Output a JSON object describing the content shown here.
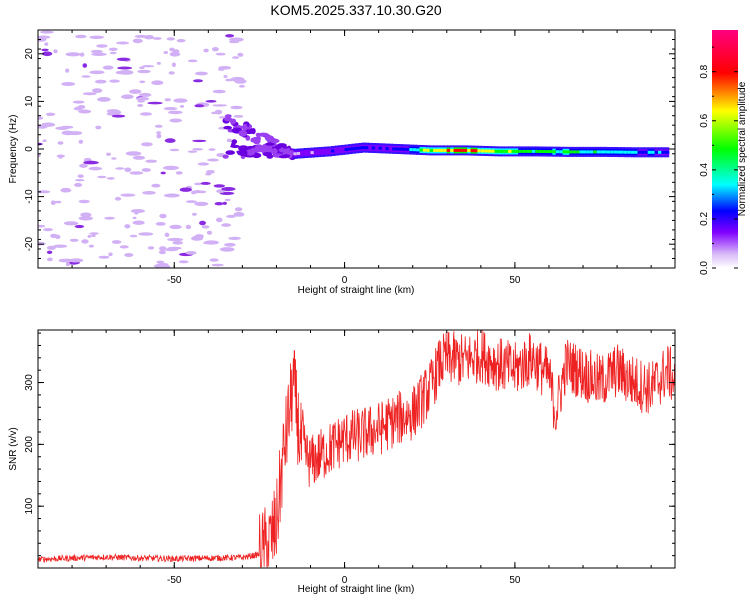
{
  "title": "KOM5.2025.337.10.30.G20",
  "chart_data": [
    {
      "type": "heatmap",
      "title": "KOM5.2025.337.10.30.G20",
      "xlabel": "Height of straight line (km)",
      "ylabel": "Frequency (Hz)",
      "xlim": [
        -90,
        97
      ],
      "ylim": [
        -25,
        25
      ],
      "xticks": [
        -50,
        0,
        50
      ],
      "yticks": [
        -20,
        -10,
        0,
        10,
        20
      ],
      "colorbar": {
        "label": "Normalized spectral amplitude",
        "range": [
          0,
          0.97
        ],
        "ticks": [
          0.0,
          0.2,
          0.4,
          0.6,
          0.8
        ],
        "colormap": [
          "#ffffff",
          "#d8b8f8",
          "#8000ff",
          "#0000ff",
          "#00ffff",
          "#00ff00",
          "#ffff00",
          "#ff0000",
          "#ff0080"
        ]
      },
      "features": {
        "noise_region_x": [
          -90,
          -30
        ],
        "transition_x": [
          -35,
          -15
        ],
        "signal_band_x": [
          -15,
          97
        ],
        "signal_band_freq": 0
      },
      "signal_band_profile": [
        {
          "x": -15,
          "freq": -1.0,
          "amplitude": 0.18
        },
        {
          "x": -5,
          "freq": -0.5,
          "amplitude": 0.25
        },
        {
          "x": 5,
          "freq": 0.3,
          "amplitude": 0.35
        },
        {
          "x": 15,
          "freq": 0.0,
          "amplitude": 0.3
        },
        {
          "x": 25,
          "freq": -0.3,
          "amplitude": 0.7
        },
        {
          "x": 35,
          "freq": -0.3,
          "amplitude": 0.8
        },
        {
          "x": 45,
          "freq": -0.5,
          "amplitude": 0.65
        },
        {
          "x": 55,
          "freq": -0.5,
          "amplitude": 0.55
        },
        {
          "x": 65,
          "freq": -0.6,
          "amplitude": 0.6
        },
        {
          "x": 75,
          "freq": -0.6,
          "amplitude": 0.5
        },
        {
          "x": 85,
          "freq": -0.7,
          "amplitude": 0.45
        },
        {
          "x": 95,
          "freq": -0.7,
          "amplitude": 0.35
        }
      ]
    },
    {
      "type": "line",
      "xlabel": "Height of straight line (km)",
      "ylabel": "SNR (v/v)",
      "xlim": [
        -90,
        97
      ],
      "ylim": [
        0,
        385
      ],
      "xticks": [
        -50,
        0,
        50
      ],
      "yticks": [
        100,
        200,
        300
      ],
      "series": [
        {
          "name": "SNR",
          "color": "#ee2222",
          "x": [
            -90,
            -80,
            -70,
            -60,
            -50,
            -40,
            -30,
            -25,
            -22,
            -20,
            -18,
            -16,
            -15,
            -13,
            -10,
            -5,
            0,
            5,
            10,
            15,
            20,
            25,
            28,
            30,
            35,
            40,
            45,
            50,
            55,
            60,
            62,
            65,
            70,
            75,
            80,
            85,
            90,
            95,
            97
          ],
          "values": [
            14,
            16,
            18,
            16,
            15,
            16,
            17,
            22,
            40,
            70,
            180,
            260,
            300,
            200,
            170,
            190,
            210,
            215,
            225,
            240,
            250,
            290,
            330,
            340,
            335,
            345,
            330,
            320,
            340,
            310,
            250,
            330,
            315,
            300,
            320,
            300,
            290,
            320,
            300
          ]
        }
      ]
    }
  ]
}
